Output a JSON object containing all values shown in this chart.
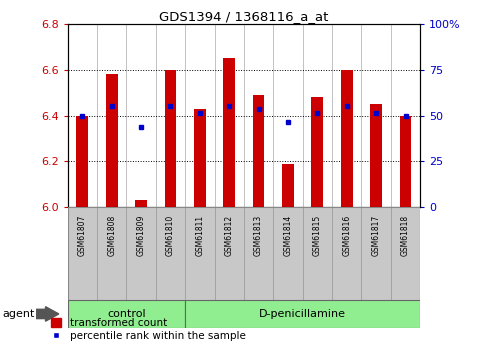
{
  "title": "GDS1394 / 1368116_a_at",
  "samples": [
    "GSM61807",
    "GSM61808",
    "GSM61809",
    "GSM61810",
    "GSM61811",
    "GSM61812",
    "GSM61813",
    "GSM61814",
    "GSM61815",
    "GSM61816",
    "GSM61817",
    "GSM61818"
  ],
  "red_values": [
    6.4,
    6.58,
    6.03,
    6.6,
    6.43,
    6.65,
    6.49,
    6.19,
    6.48,
    6.6,
    6.45,
    6.4
  ],
  "blue_values": [
    6.4,
    6.44,
    6.35,
    6.44,
    6.41,
    6.44,
    6.43,
    6.37,
    6.41,
    6.44,
    6.41,
    6.4
  ],
  "y_min": 6.0,
  "y_max": 6.8,
  "y_ticks_red": [
    6.0,
    6.2,
    6.4,
    6.6,
    6.8
  ],
  "y_ticks_blue": [
    0,
    25,
    50,
    75,
    100
  ],
  "ctrl_count": 4,
  "dp_count": 8,
  "bar_color": "#CC0000",
  "dot_color": "#0000CC",
  "agent_label": "agent",
  "legend_red": "transformed count",
  "legend_blue": "percentile rank within the sample",
  "tick_color_left": "#CC0000",
  "tick_color_right": "#0000CC",
  "title_color": "#000000",
  "bg_xtick": "#C8C8C8",
  "group_color": "#90EE90",
  "group_edge": "#666666",
  "separator_color": "#AAAAAA",
  "ctrl_label": "control",
  "dp_label": "D-penicillamine"
}
